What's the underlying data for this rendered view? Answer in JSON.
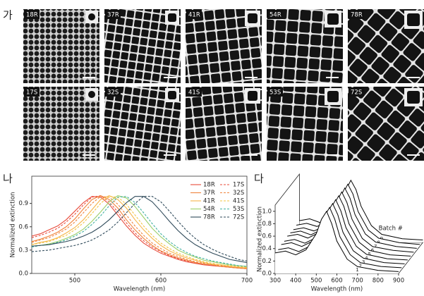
{
  "figure": {
    "panel_label": "가",
    "micrographs": [
      {
        "label": "18R"
      },
      {
        "label": "37R"
      },
      {
        "label": "41R"
      },
      {
        "label": "54R"
      },
      {
        "label": "78R"
      },
      {
        "label": "17S"
      },
      {
        "label": "32S"
      },
      {
        "label": "41S"
      },
      {
        "label": "53S"
      },
      {
        "label": "72S"
      }
    ]
  },
  "chart_data": [
    {
      "type": "line",
      "panel_label": "나",
      "xlabel": "Wavelength (nm)",
      "ylabel": "Normalized extinction",
      "xlim": [
        450,
        700
      ],
      "xticks": [
        500,
        600,
        700
      ],
      "ylim": [
        0,
        1.25
      ],
      "yticks": [
        {
          "value": 0,
          "label": "0.0"
        },
        0.3,
        0.6,
        0.9
      ],
      "legend": "upper right",
      "x": [
        450,
        460,
        470,
        480,
        490,
        500,
        510,
        520,
        530,
        540,
        550,
        560,
        570,
        580,
        590,
        600,
        610,
        620,
        630,
        640,
        650,
        660,
        670,
        680,
        690,
        700
      ],
      "series": [
        {
          "name": "18R",
          "color": "#e84a3a",
          "style": "solid",
          "values": [
            0.48,
            0.51,
            0.56,
            0.61,
            0.69,
            0.8,
            0.91,
            0.99,
            0.98,
            0.89,
            0.75,
            0.61,
            0.49,
            0.39,
            0.32,
            0.26,
            0.22,
            0.18,
            0.15,
            0.13,
            0.11,
            0.1,
            0.09,
            0.08,
            0.07,
            0.06
          ]
        },
        {
          "name": "17S",
          "color": "#e84a3a",
          "style": "dashed",
          "values": [
            0.46,
            0.49,
            0.53,
            0.58,
            0.66,
            0.76,
            0.88,
            0.98,
            1.0,
            0.92,
            0.79,
            0.65,
            0.52,
            0.42,
            0.34,
            0.28,
            0.23,
            0.19,
            0.16,
            0.14,
            0.12,
            0.1,
            0.09,
            0.08,
            0.07,
            0.06
          ]
        },
        {
          "name": "37R",
          "color": "#f0843c",
          "style": "solid",
          "values": [
            0.41,
            0.44,
            0.48,
            0.53,
            0.6,
            0.7,
            0.83,
            0.95,
            1.0,
            0.95,
            0.84,
            0.69,
            0.56,
            0.45,
            0.36,
            0.29,
            0.24,
            0.2,
            0.17,
            0.14,
            0.12,
            0.11,
            0.09,
            0.08,
            0.07,
            0.06
          ]
        },
        {
          "name": "32S",
          "color": "#f0843c",
          "style": "dashed",
          "values": [
            0.4,
            0.43,
            0.46,
            0.51,
            0.57,
            0.66,
            0.78,
            0.9,
            0.99,
            0.98,
            0.89,
            0.75,
            0.61,
            0.49,
            0.39,
            0.32,
            0.26,
            0.22,
            0.18,
            0.15,
            0.13,
            0.11,
            0.1,
            0.09,
            0.08,
            0.07
          ]
        },
        {
          "name": "41R",
          "color": "#f6b54a",
          "style": "solid",
          "values": [
            0.37,
            0.4,
            0.42,
            0.46,
            0.52,
            0.59,
            0.69,
            0.82,
            0.95,
            1.0,
            0.95,
            0.84,
            0.69,
            0.56,
            0.45,
            0.36,
            0.29,
            0.24,
            0.2,
            0.17,
            0.14,
            0.12,
            0.11,
            0.09,
            0.08,
            0.07
          ]
        },
        {
          "name": "41S",
          "color": "#f2c542",
          "style": "dashed",
          "values": [
            0.37,
            0.39,
            0.41,
            0.45,
            0.49,
            0.56,
            0.65,
            0.77,
            0.9,
            0.99,
            0.98,
            0.89,
            0.75,
            0.61,
            0.49,
            0.39,
            0.32,
            0.26,
            0.22,
            0.18,
            0.15,
            0.13,
            0.11,
            0.1,
            0.09,
            0.08
          ]
        },
        {
          "name": "54R",
          "color": "#9ccf6a",
          "style": "solid",
          "values": [
            0.35,
            0.36,
            0.38,
            0.41,
            0.45,
            0.5,
            0.57,
            0.67,
            0.79,
            0.92,
            1.0,
            0.97,
            0.86,
            0.72,
            0.58,
            0.47,
            0.38,
            0.3,
            0.25,
            0.21,
            0.17,
            0.15,
            0.13,
            0.11,
            0.1,
            0.09
          ]
        },
        {
          "name": "53S",
          "color": "#3fb0a0",
          "style": "dashed",
          "values": [
            0.34,
            0.36,
            0.37,
            0.4,
            0.43,
            0.48,
            0.54,
            0.63,
            0.74,
            0.87,
            0.98,
            0.99,
            0.91,
            0.78,
            0.64,
            0.51,
            0.41,
            0.33,
            0.27,
            0.22,
            0.19,
            0.16,
            0.14,
            0.12,
            0.1,
            0.09
          ]
        },
        {
          "name": "78R",
          "color": "#2f4a5a",
          "style": "solid",
          "values": [
            0.35,
            0.36,
            0.37,
            0.39,
            0.41,
            0.44,
            0.48,
            0.53,
            0.6,
            0.69,
            0.8,
            0.91,
            0.99,
            0.99,
            0.92,
            0.8,
            0.67,
            0.55,
            0.45,
            0.37,
            0.31,
            0.26,
            0.22,
            0.18,
            0.16,
            0.14
          ]
        },
        {
          "name": "72S",
          "color": "#2f4a5a",
          "style": "dashed",
          "values": [
            0.28,
            0.29,
            0.3,
            0.32,
            0.34,
            0.36,
            0.39,
            0.43,
            0.49,
            0.56,
            0.66,
            0.78,
            0.9,
            0.99,
            0.99,
            0.92,
            0.8,
            0.67,
            0.55,
            0.45,
            0.37,
            0.31,
            0.26,
            0.22,
            0.18,
            0.16
          ]
        }
      ]
    },
    {
      "type": "waterfall",
      "panel_label": "다",
      "xlabel": "Wavelength (nm)",
      "ylabel": "Normalized extinction",
      "depth_label": "Batch #",
      "color": "#000000",
      "xlim": [
        300,
        900
      ],
      "xticks": [
        300,
        400,
        500,
        600,
        700,
        800,
        900
      ],
      "ylim": [
        0,
        1.1
      ],
      "yticks": [
        {
          "value": 0,
          "label": "0.0"
        },
        0.2,
        0.4,
        0.6,
        0.8,
        {
          "value": 1,
          "label": "1.0"
        }
      ],
      "x": [
        300,
        350,
        400,
        450,
        500,
        525,
        550,
        575,
        600,
        650,
        700,
        800,
        900
      ],
      "series": [
        {
          "name": "1",
          "values": [
            0.33,
            0.36,
            0.3,
            0.38,
            0.64,
            0.87,
            1.0,
            0.8,
            0.52,
            0.23,
            0.11,
            0.05,
            0.03
          ]
        },
        {
          "name": "2",
          "values": [
            0.32,
            0.35,
            0.29,
            0.37,
            0.62,
            0.86,
            1.0,
            0.81,
            0.53,
            0.24,
            0.11,
            0.05,
            0.03
          ]
        },
        {
          "name": "3",
          "values": [
            0.34,
            0.37,
            0.31,
            0.39,
            0.63,
            0.86,
            1.0,
            0.82,
            0.54,
            0.24,
            0.12,
            0.05,
            0.03
          ]
        },
        {
          "name": "4",
          "values": [
            0.33,
            0.36,
            0.3,
            0.38,
            0.61,
            0.85,
            1.0,
            0.82,
            0.55,
            0.25,
            0.12,
            0.05,
            0.03
          ]
        },
        {
          "name": "5",
          "values": [
            0.35,
            0.38,
            0.32,
            0.4,
            0.63,
            0.85,
            1.0,
            0.83,
            0.55,
            0.25,
            0.12,
            0.05,
            0.03
          ]
        },
        {
          "name": "6",
          "values": [
            0.34,
            0.37,
            0.31,
            0.39,
            0.62,
            0.84,
            1.0,
            0.83,
            0.56,
            0.25,
            0.12,
            0.06,
            0.03
          ]
        },
        {
          "name": "7",
          "values": [
            0.33,
            0.36,
            0.31,
            0.38,
            0.6,
            0.83,
            1.0,
            0.84,
            0.57,
            0.26,
            0.13,
            0.06,
            0.03
          ]
        },
        {
          "name": "8",
          "values": [
            0.34,
            0.37,
            0.32,
            0.39,
            0.61,
            0.84,
            1.0,
            0.84,
            0.56,
            0.26,
            0.13,
            0.06,
            0.03
          ]
        },
        {
          "name": "9",
          "values": [
            0.35,
            0.38,
            0.32,
            0.4,
            0.62,
            0.84,
            1.0,
            0.85,
            0.58,
            0.27,
            0.13,
            0.06,
            0.04
          ]
        }
      ]
    }
  ]
}
